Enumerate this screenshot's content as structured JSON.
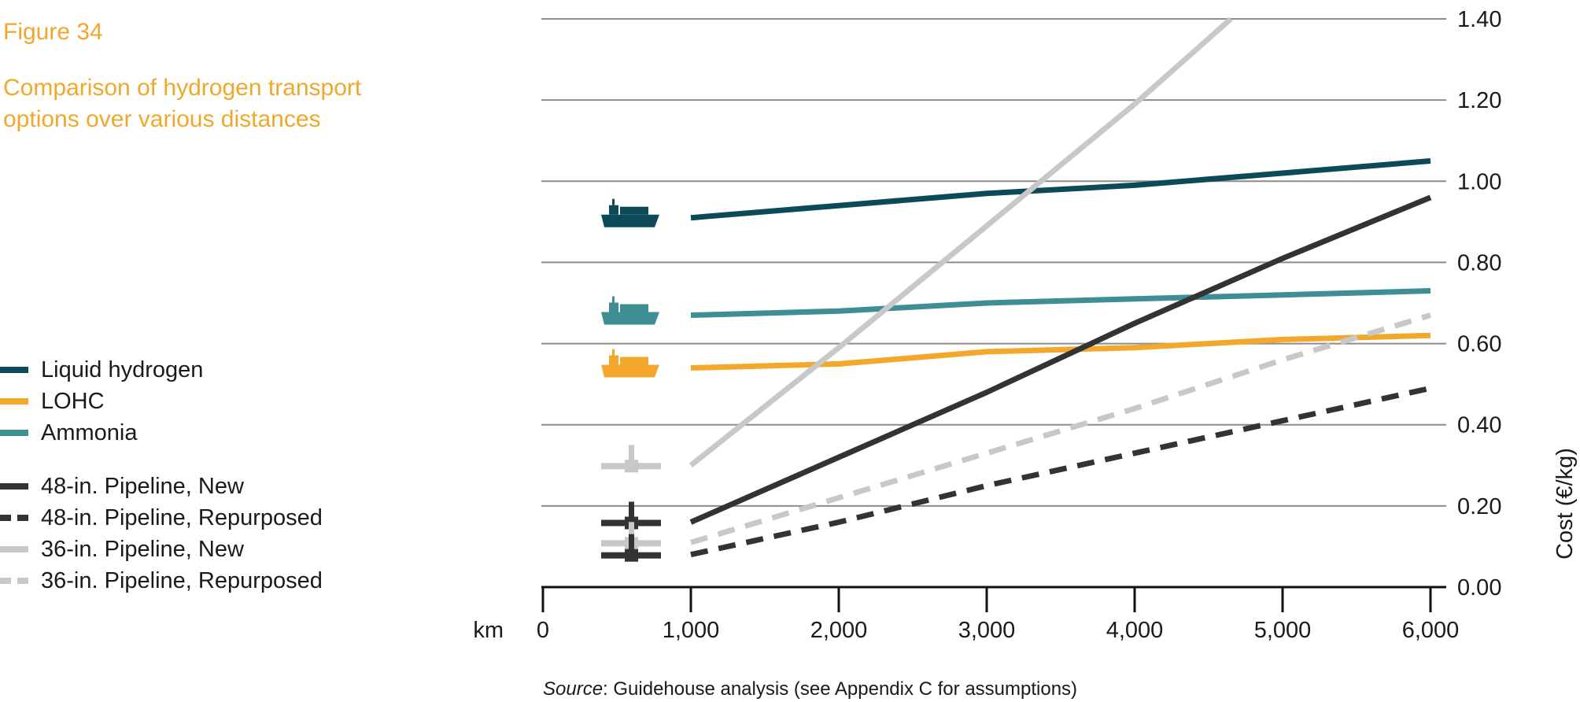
{
  "figure": {
    "label": "Figure 34",
    "title": "Comparison of hydrogen transport options over various distances"
  },
  "source": {
    "prefix": "Source",
    "text": ": Guidehouse analysis (see Appendix C for assumptions)"
  },
  "legend": [
    {
      "label": "Liquid hydrogen",
      "color": "#0c4a58",
      "style": "solid"
    },
    {
      "label": "LOHC",
      "color": "#f4a82b",
      "style": "solid"
    },
    {
      "label": "Ammonia",
      "color": "#3d8f93",
      "style": "solid"
    },
    {
      "label": "48-in. Pipeline, New",
      "color": "#333333",
      "style": "solid"
    },
    {
      "label": "48-in. Pipeline, Repurposed",
      "color": "#333333",
      "style": "dashed"
    },
    {
      "label": "36-in. Pipeline, New",
      "color": "#c8c8c8",
      "style": "solid"
    },
    {
      "label": "36-in. Pipeline, Repurposed",
      "color": "#c8c8c8",
      "style": "dashed"
    }
  ],
  "chart_data": {
    "type": "line",
    "title": "Comparison of hydrogen transport options over various distances",
    "xlabel": "km",
    "ylabel": "Cost (€/kg)",
    "xlim": [
      0,
      6000
    ],
    "ylim": [
      0,
      1.4
    ],
    "x_ticks": [
      0,
      1000,
      2000,
      3000,
      4000,
      5000,
      6000
    ],
    "x_tick_labels": [
      "0",
      "1,000",
      "2,000",
      "3,000",
      "4,000",
      "5,000",
      "6,000"
    ],
    "y_ticks": [
      0,
      0.2,
      0.4,
      0.6,
      0.8,
      1.0,
      1.2,
      1.4
    ],
    "y_tick_labels": [
      "0.00",
      "0.20",
      "0.40",
      "0.60",
      "0.80",
      "1.00",
      "1.20",
      "1.40"
    ],
    "grid": true,
    "legend_position": "left",
    "series": [
      {
        "name": "Liquid hydrogen",
        "color": "#0c4a58",
        "style": "solid",
        "icon": "ship-icon",
        "x": [
          1000,
          2000,
          3000,
          4000,
          5000,
          6000
        ],
        "values": [
          0.91,
          0.94,
          0.97,
          0.99,
          1.02,
          1.05
        ]
      },
      {
        "name": "Ammonia",
        "color": "#3d8f93",
        "style": "solid",
        "icon": "ship-icon",
        "x": [
          1000,
          2000,
          3000,
          4000,
          5000,
          6000
        ],
        "values": [
          0.67,
          0.68,
          0.7,
          0.71,
          0.72,
          0.73
        ]
      },
      {
        "name": "LOHC",
        "color": "#f4a82b",
        "style": "solid",
        "icon": "ship-icon",
        "x": [
          1000,
          2000,
          3000,
          4000,
          5000,
          6000
        ],
        "values": [
          0.54,
          0.55,
          0.58,
          0.59,
          0.61,
          0.62
        ]
      },
      {
        "name": "36-in. Pipeline, New",
        "color": "#c8c8c8",
        "style": "solid",
        "icon": "pipe-icon",
        "x": [
          1000,
          2000,
          3000,
          4000,
          4650
        ],
        "values": [
          0.3,
          0.59,
          0.89,
          1.19,
          1.4
        ]
      },
      {
        "name": "48-in. Pipeline, New",
        "color": "#333333",
        "style": "solid",
        "icon": "pipe-icon",
        "x": [
          1000,
          2000,
          3000,
          4000,
          5000,
          6000
        ],
        "values": [
          0.16,
          0.32,
          0.48,
          0.65,
          0.81,
          0.96
        ]
      },
      {
        "name": "36-in. Pipeline, Repurposed",
        "color": "#c8c8c8",
        "style": "dashed",
        "icon": "pipe-icon",
        "x": [
          1000,
          2000,
          3000,
          4000,
          5000,
          6000
        ],
        "values": [
          0.11,
          0.22,
          0.33,
          0.44,
          0.56,
          0.67
        ]
      },
      {
        "name": "48-in. Pipeline, Repurposed",
        "color": "#333333",
        "style": "dashed",
        "icon": "pipe-icon",
        "x": [
          1000,
          2000,
          3000,
          4000,
          5000,
          6000
        ],
        "values": [
          0.08,
          0.16,
          0.25,
          0.33,
          0.41,
          0.49
        ]
      }
    ]
  }
}
